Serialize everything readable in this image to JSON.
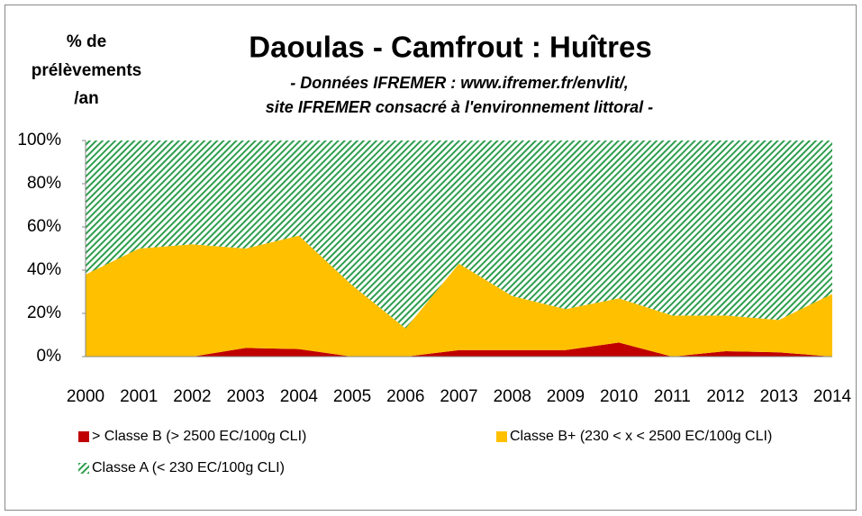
{
  "chart_data": {
    "type": "stacked-area",
    "title": "Daoulas - Camfrout : Huîtres",
    "subtitle": [
      "- Données IFREMER :  www.ifremer.fr/envlit/,",
      "site IFREMER consacré à l'environnement littoral -"
    ],
    "ylabel": [
      "% de",
      "prélèvements",
      "/an"
    ],
    "categories": [
      "2000",
      "2001",
      "2002",
      "2003",
      "2004",
      "2005",
      "2006",
      "2007",
      "2008",
      "2009",
      "2010",
      "2011",
      "2012",
      "2013",
      "2014"
    ],
    "series": [
      {
        "name": "> Classe B (> 2500 EC/100g CLI)",
        "color": "#c00000",
        "values": [
          0,
          0,
          0,
          4,
          3.5,
          0,
          0,
          3,
          3,
          3,
          6.5,
          0,
          2.5,
          2,
          0
        ]
      },
      {
        "name": "Classe B+ (230 < x < 2500 EC/100g CLI)",
        "color": "#ffc000",
        "values": [
          38,
          50,
          52,
          46,
          52.5,
          33,
          13,
          40,
          25,
          19,
          20.5,
          19,
          16.5,
          15,
          29
        ]
      },
      {
        "name": "Classe A (< 230 EC/100g CLI)",
        "color": "#2e9e4f",
        "pattern": "diagonal-stripes",
        "values": [
          62,
          50,
          48,
          50,
          44,
          67,
          87,
          57,
          72,
          78,
          73,
          81,
          81,
          83,
          71
        ]
      }
    ],
    "ylim": [
      0,
      100
    ],
    "yticks": [
      {
        "value": 0,
        "label": "0%"
      },
      {
        "value": 20,
        "label": "20%"
      },
      {
        "value": 40,
        "label": "40%"
      },
      {
        "value": 60,
        "label": "60%"
      },
      {
        "value": 80,
        "label": "80%"
      },
      {
        "value": 100,
        "label": "100%"
      }
    ]
  }
}
